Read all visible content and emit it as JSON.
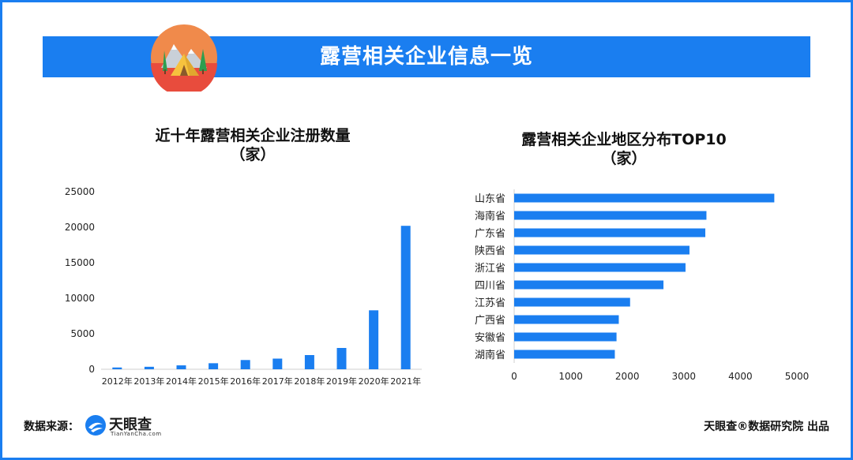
{
  "header": {
    "title": "露营相关企业信息一览"
  },
  "colors": {
    "accent": "#1a7ef0",
    "bar": "#1a7ef0"
  },
  "footer": {
    "source_label": "数据来源：",
    "logo_name": "天眼查",
    "logo_sub": "TianYanCha.com",
    "credit": "天眼查®数据研究院 出品"
  },
  "chart_data": [
    {
      "type": "bar",
      "title": "近十年露营相关企业注册数量",
      "subtitle": "（家）",
      "categories": [
        "2012年",
        "2013年",
        "2014年",
        "2015年",
        "2016年",
        "2017年",
        "2018年",
        "2019年",
        "2020年",
        "2021年"
      ],
      "values": [
        250,
        350,
        550,
        850,
        1300,
        1500,
        2000,
        3000,
        8300,
        20200
      ],
      "ylim": [
        0,
        25000
      ],
      "yticks": [
        "0",
        "5000",
        "10000",
        "15000",
        "20000",
        "25000"
      ],
      "grid": false
    },
    {
      "type": "bar",
      "orientation": "horizontal",
      "title": "露营相关企业地区分布TOP10",
      "subtitle": "（家）",
      "categories": [
        "山东省",
        "海南省",
        "广东省",
        "陕西省",
        "浙江省",
        "四川省",
        "江苏省",
        "广西省",
        "安徽省",
        "湖南省"
      ],
      "values": [
        4600,
        3400,
        3380,
        3100,
        3030,
        2640,
        2050,
        1850,
        1810,
        1780
      ],
      "xlim": [
        0,
        5000
      ],
      "xticks": [
        "0",
        "1000",
        "2000",
        "3000",
        "4000",
        "5000"
      ],
      "grid": false
    }
  ]
}
